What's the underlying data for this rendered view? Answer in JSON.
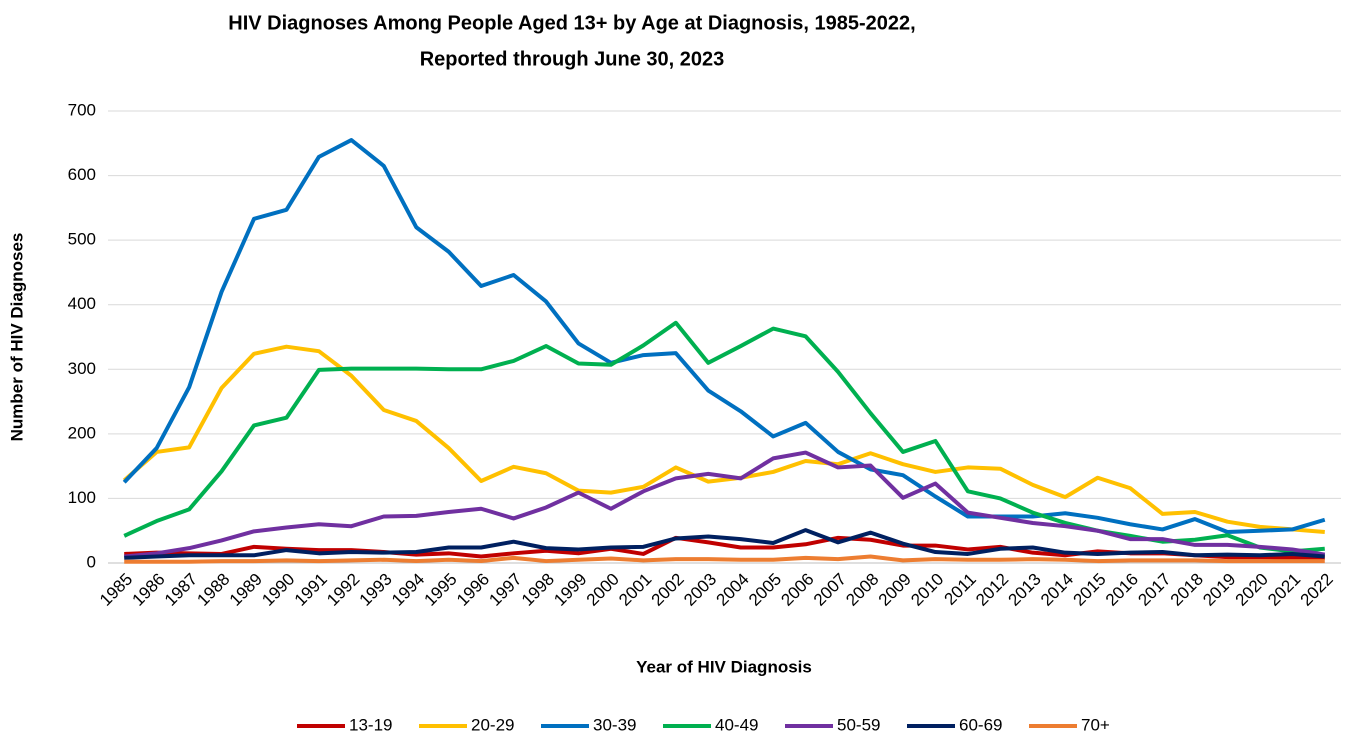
{
  "chart_data": {
    "type": "line",
    "title": [
      "HIV Diagnoses Among People Aged 13+ by Age at Diagnosis, 1985-2022,",
      "Reported through June 30, 2023"
    ],
    "xlabel": "Year of HIV Diagnosis",
    "ylabel": "Number of HIV Diagnoses",
    "categories": [
      "1985",
      "1986",
      "1987",
      "1988",
      "1989",
      "1990",
      "1991",
      "1992",
      "1993",
      "1994",
      "1995",
      "1996",
      "1997",
      "1998",
      "1999",
      "2000",
      "2001",
      "2002",
      "2003",
      "2004",
      "2005",
      "2006",
      "2007",
      "2008",
      "2009",
      "2010",
      "2011",
      "2012",
      "2013",
      "2014",
      "2015",
      "2016",
      "2017",
      "2018",
      "2019",
      "2020",
      "2021",
      "2022"
    ],
    "ylim": [
      0,
      700
    ],
    "yticks": [
      0,
      100,
      200,
      300,
      400,
      500,
      600,
      700
    ],
    "grid": true,
    "legend": "bottom",
    "series": [
      {
        "name": "13-19",
        "color": "#c00000",
        "values": [
          14,
          16,
          15,
          14,
          25,
          22,
          20,
          20,
          17,
          13,
          15,
          10,
          15,
          19,
          15,
          22,
          14,
          39,
          32,
          24,
          24,
          29,
          39,
          36,
          27,
          27,
          21,
          25,
          16,
          12,
          18,
          15,
          15,
          12,
          9,
          9,
          8,
          8
        ]
      },
      {
        "name": "20-29",
        "color": "#ffc000",
        "values": [
          128,
          172,
          179,
          271,
          324,
          335,
          328,
          290,
          237,
          220,
          178,
          127,
          149,
          139,
          112,
          109,
          118,
          148,
          126,
          132,
          141,
          158,
          153,
          170,
          153,
          141,
          148,
          146,
          121,
          102,
          132,
          116,
          76,
          79,
          64,
          56,
          52,
          48
        ]
      },
      {
        "name": "30-39",
        "color": "#0070c0",
        "values": [
          125,
          178,
          272,
          420,
          533,
          547,
          629,
          655,
          615,
          520,
          482,
          429,
          446,
          405,
          340,
          310,
          322,
          325,
          267,
          235,
          196,
          217,
          172,
          145,
          136,
          103,
          72,
          72,
          72,
          77,
          70,
          60,
          52,
          68,
          48,
          50,
          52,
          67
        ]
      },
      {
        "name": "40-49",
        "color": "#00b050",
        "values": [
          42,
          65,
          83,
          142,
          213,
          225,
          299,
          301,
          301,
          301,
          300,
          300,
          313,
          336,
          309,
          307,
          337,
          372,
          310,
          336,
          363,
          351,
          296,
          232,
          172,
          189,
          111,
          100,
          78,
          62,
          50,
          42,
          33,
          36,
          43,
          24,
          18,
          22
        ]
      },
      {
        "name": "50-59",
        "color": "#7030a0",
        "values": [
          10,
          15,
          23,
          35,
          49,
          55,
          60,
          57,
          72,
          73,
          79,
          84,
          69,
          86,
          109,
          84,
          111,
          131,
          138,
          131,
          162,
          171,
          148,
          151,
          101,
          123,
          78,
          70,
          62,
          57,
          50,
          37,
          37,
          28,
          28,
          25,
          21,
          13
        ]
      },
      {
        "name": "60-69",
        "color": "#002060",
        "values": [
          8,
          10,
          12,
          12,
          12,
          20,
          15,
          17,
          16,
          17,
          24,
          24,
          33,
          23,
          21,
          24,
          25,
          38,
          41,
          37,
          31,
          51,
          32,
          47,
          30,
          17,
          14,
          22,
          24,
          16,
          14,
          16,
          17,
          12,
          13,
          12,
          14,
          10
        ]
      },
      {
        "name": "70+",
        "color": "#ed7d31",
        "values": [
          2,
          2,
          2,
          3,
          3,
          4,
          3,
          4,
          5,
          3,
          5,
          3,
          8,
          3,
          5,
          7,
          4,
          6,
          6,
          5,
          5,
          8,
          6,
          10,
          4,
          6,
          5,
          5,
          6,
          5,
          3,
          4,
          4,
          4,
          3,
          3,
          3,
          3
        ]
      }
    ]
  }
}
